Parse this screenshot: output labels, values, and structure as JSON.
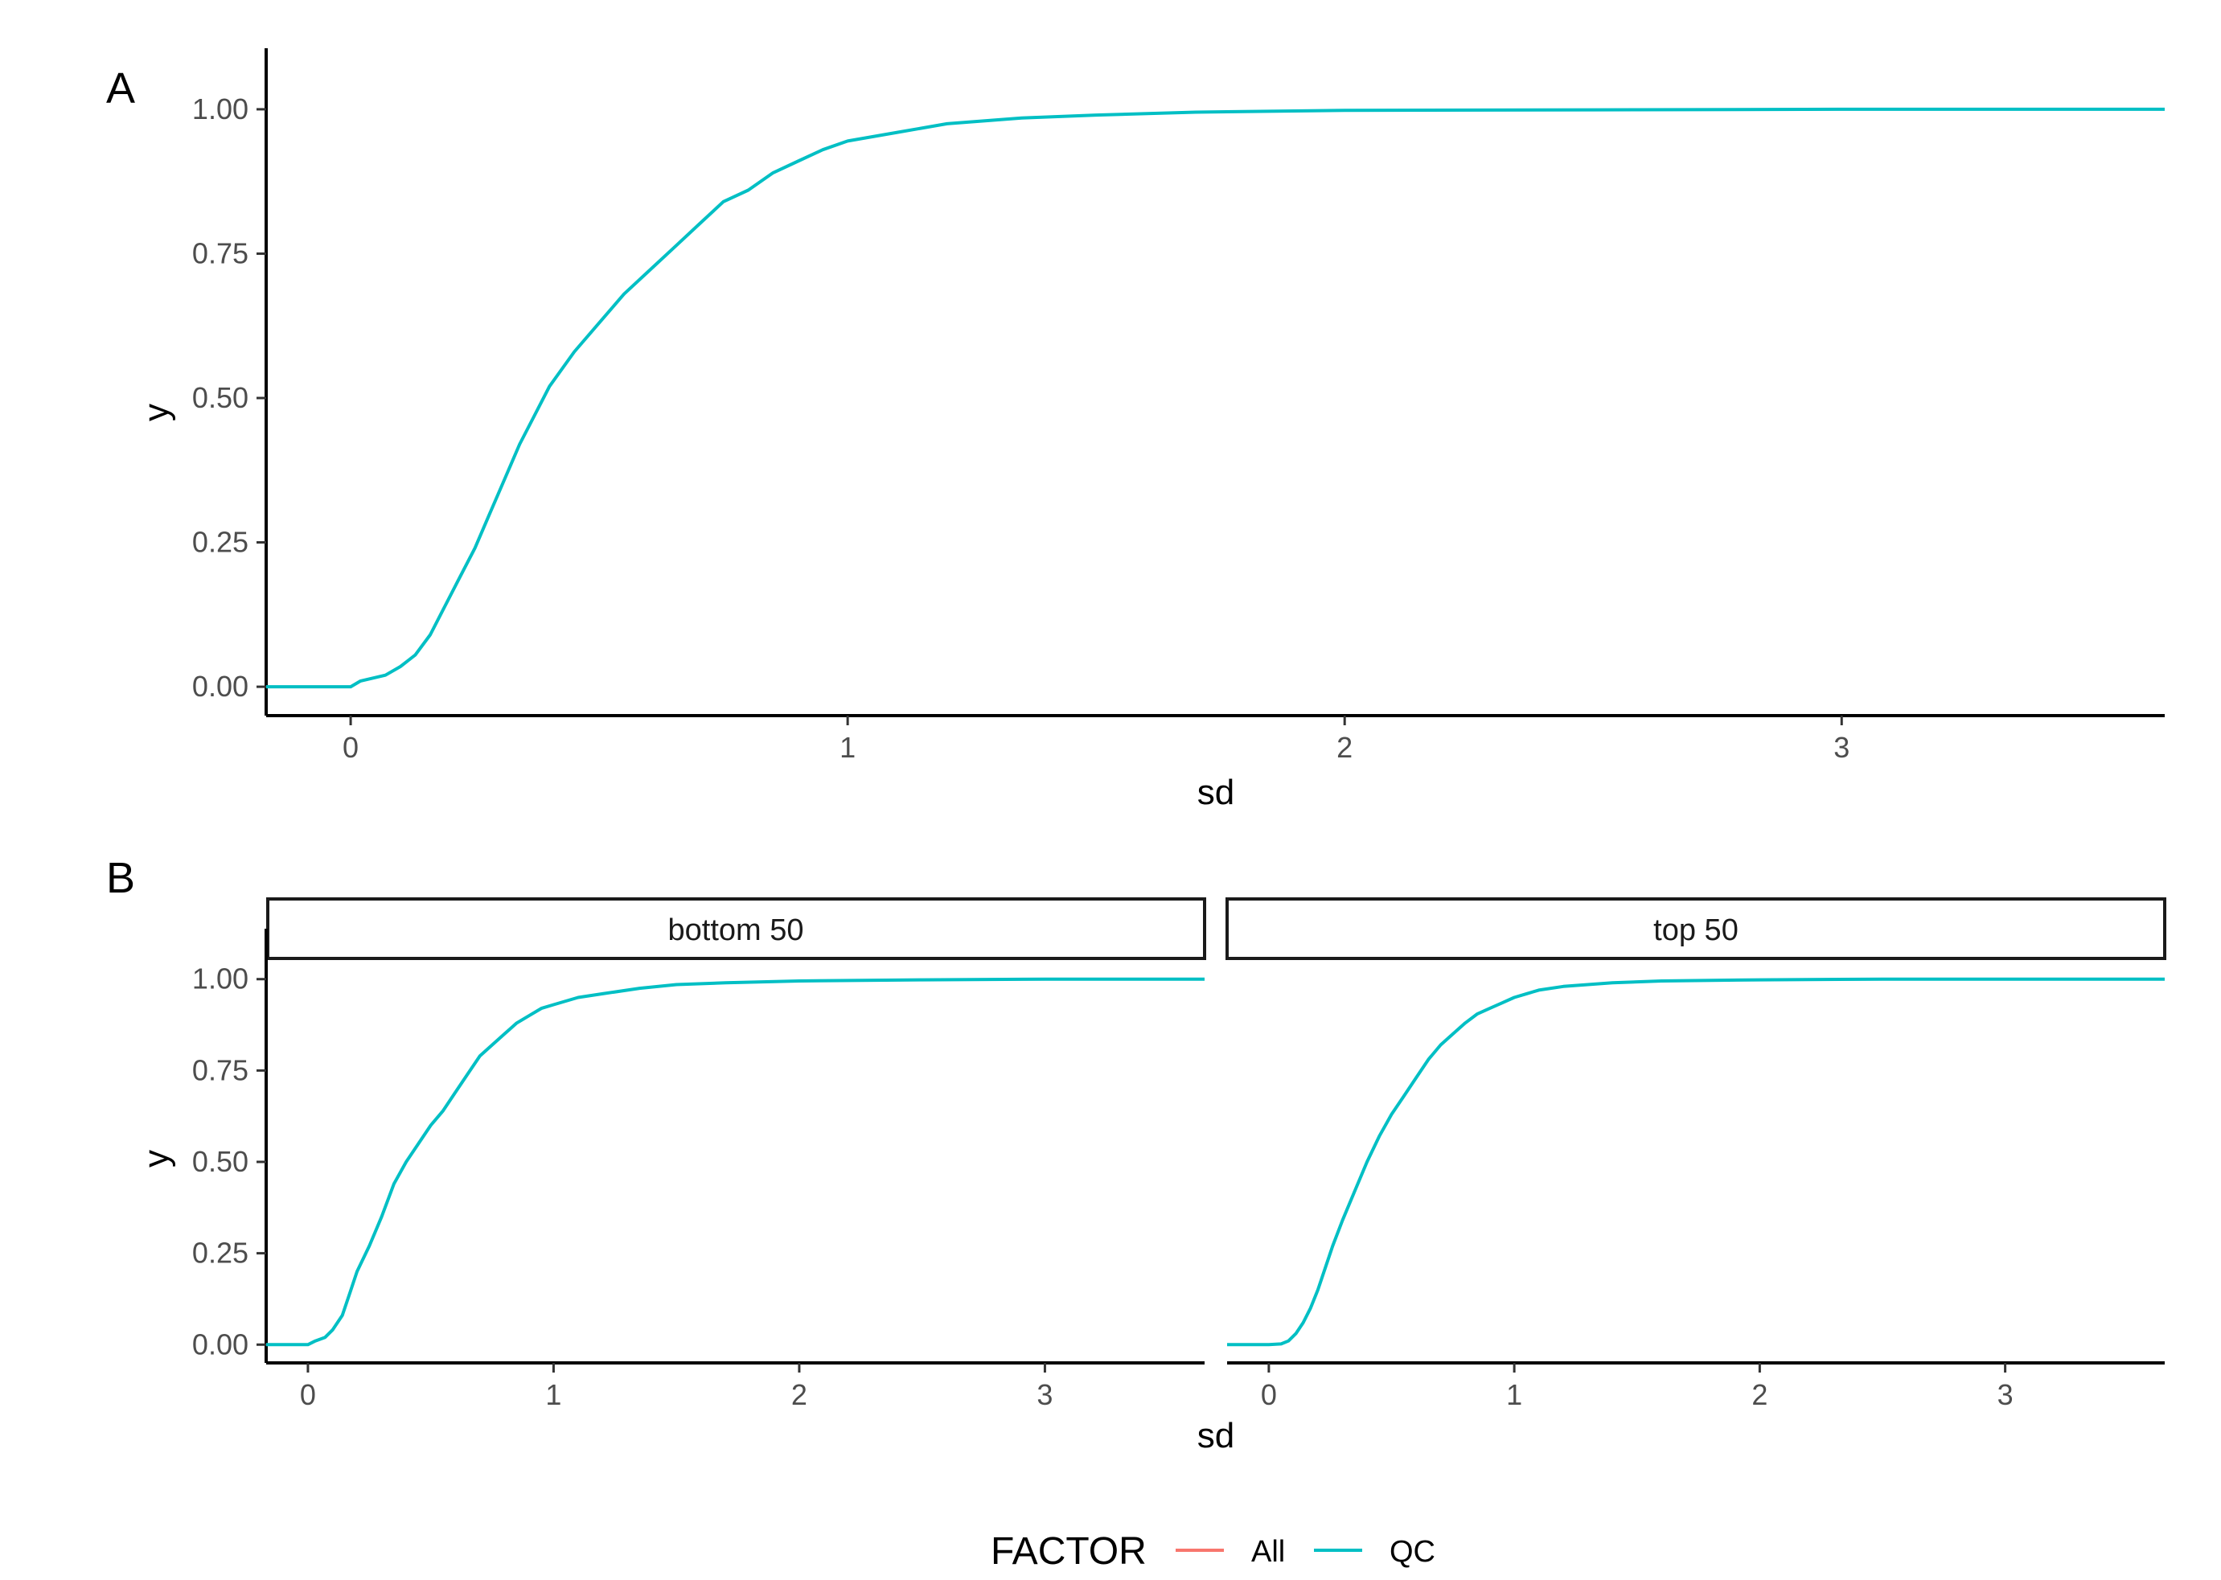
{
  "chart_data": [
    {
      "panel": "A",
      "type": "line",
      "xlabel": "sd",
      "ylabel": "y",
      "xlim": [
        -0.17,
        3.65
      ],
      "ylim": [
        -0.05,
        1.05
      ],
      "x_ticks": [
        0,
        1,
        2,
        3
      ],
      "x_tick_labels": [
        "0",
        "1",
        "2",
        "3"
      ],
      "y_ticks": [
        0,
        0.25,
        0.5,
        0.75,
        1.0
      ],
      "y_tick_labels": [
        "0.00",
        "0.25",
        "0.50",
        "0.75",
        "1.00"
      ],
      "grid": false,
      "series": [
        {
          "name": "QC",
          "color": "#00BFC4",
          "x": [
            -0.17,
            0.0,
            0.02,
            0.07,
            0.1,
            0.13,
            0.16,
            0.19,
            0.22,
            0.25,
            0.28,
            0.31,
            0.34,
            0.37,
            0.4,
            0.45,
            0.5,
            0.55,
            0.6,
            0.65,
            0.7,
            0.75,
            0.8,
            0.85,
            0.9,
            0.95,
            1.0,
            1.1,
            1.2,
            1.35,
            1.5,
            1.7,
            2.0,
            2.5,
            3.0,
            3.65
          ],
          "y": [
            0.0,
            0.0,
            0.01,
            0.02,
            0.035,
            0.055,
            0.09,
            0.14,
            0.19,
            0.24,
            0.3,
            0.36,
            0.42,
            0.47,
            0.52,
            0.58,
            0.63,
            0.68,
            0.72,
            0.76,
            0.8,
            0.84,
            0.86,
            0.89,
            0.91,
            0.93,
            0.945,
            0.96,
            0.975,
            0.985,
            0.99,
            0.995,
            0.998,
            0.999,
            1.0,
            1.0
          ]
        }
      ]
    },
    {
      "panel": "B",
      "type": "line",
      "facet": "bottom 50",
      "xlabel": "sd",
      "ylabel": "y",
      "xlim": [
        -0.17,
        3.65
      ],
      "ylim": [
        -0.05,
        1.05
      ],
      "x_ticks": [
        0,
        1,
        2,
        3
      ],
      "x_tick_labels": [
        "0",
        "1",
        "2",
        "3"
      ],
      "y_ticks": [
        0,
        0.25,
        0.5,
        0.75,
        1.0
      ],
      "y_tick_labels": [
        "0.00",
        "0.25",
        "0.50",
        "0.75",
        "1.00"
      ],
      "grid": false,
      "series": [
        {
          "name": "QC",
          "color": "#00BFC4",
          "x": [
            -0.17,
            0.0,
            0.03,
            0.07,
            0.1,
            0.14,
            0.17,
            0.2,
            0.25,
            0.3,
            0.35,
            0.4,
            0.45,
            0.5,
            0.55,
            0.6,
            0.65,
            0.7,
            0.75,
            0.8,
            0.85,
            0.9,
            0.95,
            1.0,
            1.1,
            1.2,
            1.35,
            1.5,
            1.7,
            2.0,
            2.5,
            3.0,
            3.65
          ],
          "y": [
            0.0,
            0.0,
            0.01,
            0.02,
            0.04,
            0.08,
            0.14,
            0.2,
            0.27,
            0.35,
            0.44,
            0.5,
            0.55,
            0.6,
            0.64,
            0.69,
            0.74,
            0.79,
            0.82,
            0.85,
            0.88,
            0.9,
            0.92,
            0.93,
            0.95,
            0.96,
            0.975,
            0.985,
            0.99,
            0.995,
            0.998,
            1.0,
            1.0
          ]
        }
      ]
    },
    {
      "panel": "B",
      "type": "line",
      "facet": "top 50",
      "xlabel": "sd",
      "ylabel": "y",
      "xlim": [
        -0.17,
        3.65
      ],
      "ylim": [
        -0.05,
        1.05
      ],
      "x_ticks": [
        0,
        1,
        2,
        3
      ],
      "x_tick_labels": [
        "0",
        "1",
        "2",
        "3"
      ],
      "y_ticks": [
        0,
        0.25,
        0.5,
        0.75,
        1.0
      ],
      "y_tick_labels": [
        "0.00",
        "0.25",
        "0.50",
        "0.75",
        "1.00"
      ],
      "grid": false,
      "series": [
        {
          "name": "QC",
          "color": "#00BFC4",
          "x": [
            -0.17,
            0.0,
            0.05,
            0.08,
            0.11,
            0.14,
            0.17,
            0.2,
            0.23,
            0.26,
            0.3,
            0.35,
            0.4,
            0.45,
            0.5,
            0.55,
            0.6,
            0.65,
            0.7,
            0.75,
            0.8,
            0.85,
            0.9,
            0.95,
            1.0,
            1.05,
            1.1,
            1.2,
            1.3,
            1.4,
            1.6,
            2.0,
            2.5,
            3.0,
            3.65
          ],
          "y": [
            0.0,
            0.0,
            0.002,
            0.01,
            0.03,
            0.06,
            0.1,
            0.15,
            0.21,
            0.27,
            0.34,
            0.42,
            0.5,
            0.57,
            0.63,
            0.68,
            0.73,
            0.78,
            0.82,
            0.85,
            0.88,
            0.905,
            0.92,
            0.935,
            0.95,
            0.96,
            0.97,
            0.98,
            0.985,
            0.99,
            0.995,
            0.998,
            1.0,
            1.0,
            1.0
          ]
        }
      ]
    }
  ],
  "panels": {
    "a_tag": "A",
    "b_tag": "B",
    "strip_left": "bottom 50",
    "strip_right": "top 50"
  },
  "legend": {
    "title": "FACTOR",
    "placement": "bottom",
    "items": [
      {
        "label": "All",
        "color": "#F8766D"
      },
      {
        "label": "QC",
        "color": "#00BFC4"
      }
    ]
  }
}
